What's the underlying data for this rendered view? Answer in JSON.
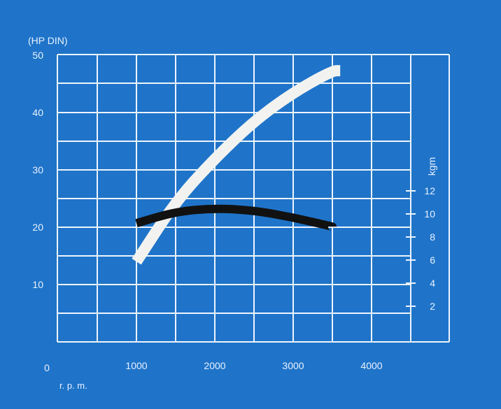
{
  "chart_data": {
    "type": "line",
    "title": "",
    "y_label": "(HP DIN)",
    "y2_label": "kgm",
    "x_label": "r. p. m.",
    "x_origin_label": "0",
    "x_ticks": [
      "1000",
      "2000",
      "3000",
      "4000"
    ],
    "y_ticks": [
      "10",
      "20",
      "30",
      "40",
      "50"
    ],
    "y2_ticks": [
      "2",
      "4",
      "6",
      "8",
      "10",
      "12"
    ],
    "xlim": [
      0,
      4500
    ],
    "ylim": [
      0,
      50
    ],
    "y2lim": [
      0,
      12
    ],
    "grid": true,
    "colors": {
      "background": "#1f74c9",
      "grid": "#eef4ff",
      "power_curve": "#f2f3f1",
      "torque_curve": "#111111",
      "text": "#e9f1ff"
    },
    "series": [
      {
        "axis": "left",
        "color": "#f2f3f1",
        "x": [
          1000,
          1500,
          2000,
          2500,
          3000,
          3500,
          3600
        ],
        "y": [
          14,
          24.5,
          32,
          38.5,
          43.5,
          47.3,
          47.3
        ]
      },
      {
        "axis": "right",
        "color": "#111111",
        "x": [
          1000,
          1500,
          2000,
          2500,
          3000,
          3500
        ],
        "y": [
          9.2,
          10.2,
          10.5,
          10.3,
          9.7,
          8.9
        ]
      }
    ]
  }
}
